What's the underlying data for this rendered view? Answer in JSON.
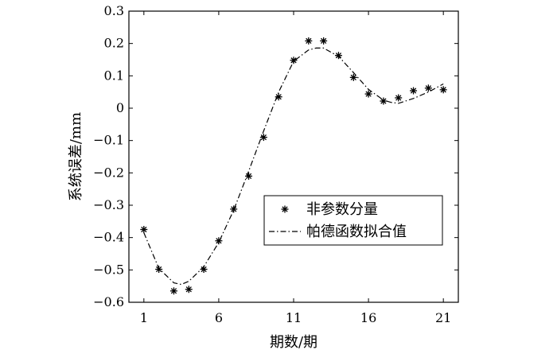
{
  "chart_data": {
    "type": "scatter",
    "xlabel": "期数/期",
    "ylabel": "系统误差/mm",
    "xlim": [
      0,
      22
    ],
    "ylim": [
      -0.6,
      0.3
    ],
    "xticks": [
      1,
      6,
      11,
      16,
      21
    ],
    "xtick_labels": [
      "1",
      "6",
      "11",
      "16",
      "21"
    ],
    "yticks": [
      -0.6,
      -0.5,
      -0.4,
      -0.3,
      -0.2,
      -0.1,
      0,
      0.1,
      0.2,
      0.3
    ],
    "ytick_labels": [
      "−0.6",
      "−0.5",
      "−0.4",
      "−0.3",
      "−0.2",
      "−0.1",
      "0",
      "0.1",
      "0.2",
      "0.3"
    ],
    "grid": false,
    "legend_position": "center-right",
    "series": [
      {
        "name": "非参数分量",
        "type": "scatter",
        "marker": "asterisk",
        "color": "#000000",
        "x": [
          1,
          2,
          3,
          4,
          5,
          6,
          7,
          8,
          9,
          10,
          11,
          12,
          13,
          14,
          15,
          16,
          17,
          18,
          19,
          20,
          21
        ],
        "y": [
          -0.375,
          -0.498,
          -0.565,
          -0.56,
          -0.498,
          -0.41,
          -0.312,
          -0.21,
          -0.09,
          0.035,
          0.148,
          0.208,
          0.208,
          0.163,
          0.095,
          0.044,
          0.022,
          0.032,
          0.054,
          0.062,
          0.057
        ]
      },
      {
        "name": "帕德函数拟合值",
        "type": "line",
        "linestyle": "dash-dot",
        "color": "#000000",
        "x": [
          1,
          2,
          3,
          3.5,
          4,
          5,
          6,
          7,
          8,
          9,
          10,
          11,
          12,
          12.5,
          13,
          14,
          15,
          16,
          17,
          17.5,
          18,
          19,
          20,
          21
        ],
        "y": [
          -0.385,
          -0.495,
          -0.54,
          -0.545,
          -0.535,
          -0.49,
          -0.415,
          -0.315,
          -0.195,
          -0.07,
          0.05,
          0.145,
          0.18,
          0.186,
          0.186,
          0.16,
          0.11,
          0.058,
          0.025,
          0.018,
          0.015,
          0.03,
          0.05,
          0.075
        ]
      }
    ]
  }
}
